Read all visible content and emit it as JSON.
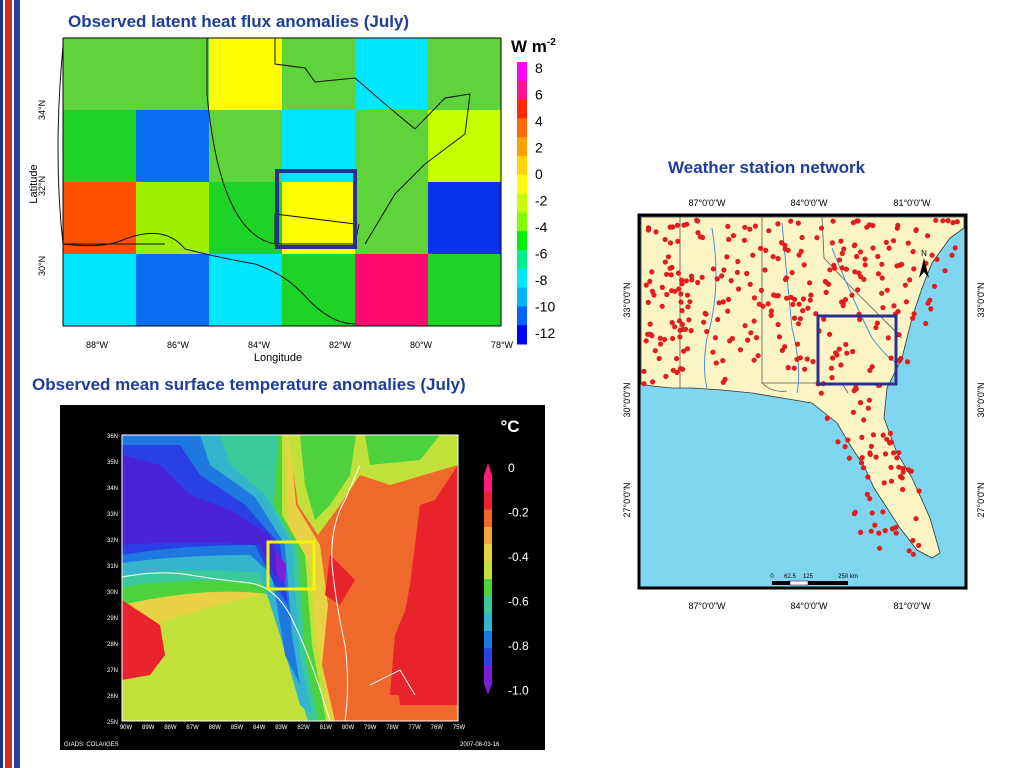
{
  "slide": {
    "heat_title": "Observed latent heat flux anomalies (July)",
    "temp_title": "Observed mean surface temperature anomalies (July)",
    "station_title": "Weather station network"
  },
  "colors": {
    "title": "#1f3d99",
    "highlight_box": "#2b2f8f",
    "temp_box": "#f5f50a",
    "station_dot": "#e11d1d",
    "land": "#fbf5c6",
    "water": "#7fd6f0"
  },
  "chart_data": [
    {
      "type": "heatmap",
      "title": "Observed latent heat flux anomalies (July)",
      "xlabel": "Longitude",
      "ylabel": "Latitude",
      "x_ticks": [
        "88°W",
        "86°W",
        "84°W",
        "82°W",
        "80°W",
        "78°W"
      ],
      "y_ticks": [
        "34°N",
        "32°N",
        "30°N"
      ],
      "colorbar_unit": "W m-2",
      "colorbar_ticks": [
        "8",
        "6",
        "4",
        "2",
        "0",
        "-2",
        "-4",
        "-6",
        "-8",
        "-10",
        "-12"
      ],
      "colorbar_colors": [
        "#ff00ff",
        "#ff1493",
        "#ff2a00",
        "#ff6a00",
        "#ffa000",
        "#ffd400",
        "#ffff00",
        "#c8ff00",
        "#7dff00",
        "#00f000",
        "#00f08c",
        "#00e6ff",
        "#00b4ff",
        "#0064ff",
        "#0000ff"
      ],
      "cells": [
        [
          "#5fd33a",
          "#5fd33a",
          "#ffff00",
          "#5fd33a",
          "#00e6ff",
          "#5fd33a"
        ],
        [
          "#1dd326",
          "#0a6ef0",
          "#5fd33a",
          "#00e6ff",
          "#5fd33a",
          "#c8ff00"
        ],
        [
          "#ff5000",
          "#9cf000",
          "#1dd326",
          "#ffff00",
          "#5fd33a",
          "#0a32f0"
        ],
        [
          "#00e6ff",
          "#0a6ef0",
          "#00e6ff",
          "#1dd326",
          "#ff0a6e",
          "#1dd326"
        ]
      ],
      "highlight_cell": {
        "row": 2,
        "col": 3
      }
    },
    {
      "type": "heatmap",
      "title": "Observed mean surface temperature anomalies (July)",
      "colorbar_unit": "°C",
      "colorbar_ticks": [
        "0",
        "-0.2",
        "-0.4",
        "-0.6",
        "-0.8",
        "-1.0"
      ],
      "colorbar_colors": [
        "#ff1c7c",
        "#e8232c",
        "#f0692c",
        "#f3a53a",
        "#e8d243",
        "#c2e03a",
        "#4dd23e",
        "#3ac99a",
        "#35b4ce",
        "#1f78e0",
        "#2a3fe4",
        "#7b1fd6"
      ],
      "x_ticks": [
        "90W",
        "89W",
        "88W",
        "87W",
        "86W",
        "85W",
        "84W",
        "83W",
        "82W",
        "81W",
        "80W",
        "79W",
        "78W",
        "77W",
        "76W",
        "75W"
      ],
      "y_ticks": [
        "36N",
        "35N",
        "34N",
        "33N",
        "32N",
        "31N",
        "30N",
        "29N",
        "28N",
        "27N",
        "26N",
        "25N"
      ],
      "footer_left": "GrADS: COLA/IGES",
      "footer_right": "2007-08-03-16"
    },
    {
      "type": "map",
      "title": "Weather station network",
      "x_ticks": [
        "87°0'0\"W",
        "84°0'0\"W",
        "81°0'0\"W"
      ],
      "y_ticks": [
        "33°0'0\"N",
        "30°0'0\"N",
        "27°0'0\"N"
      ],
      "scale_labels": [
        "0",
        "62.5",
        "125",
        "250 km"
      ],
      "north_label": "N"
    }
  ]
}
